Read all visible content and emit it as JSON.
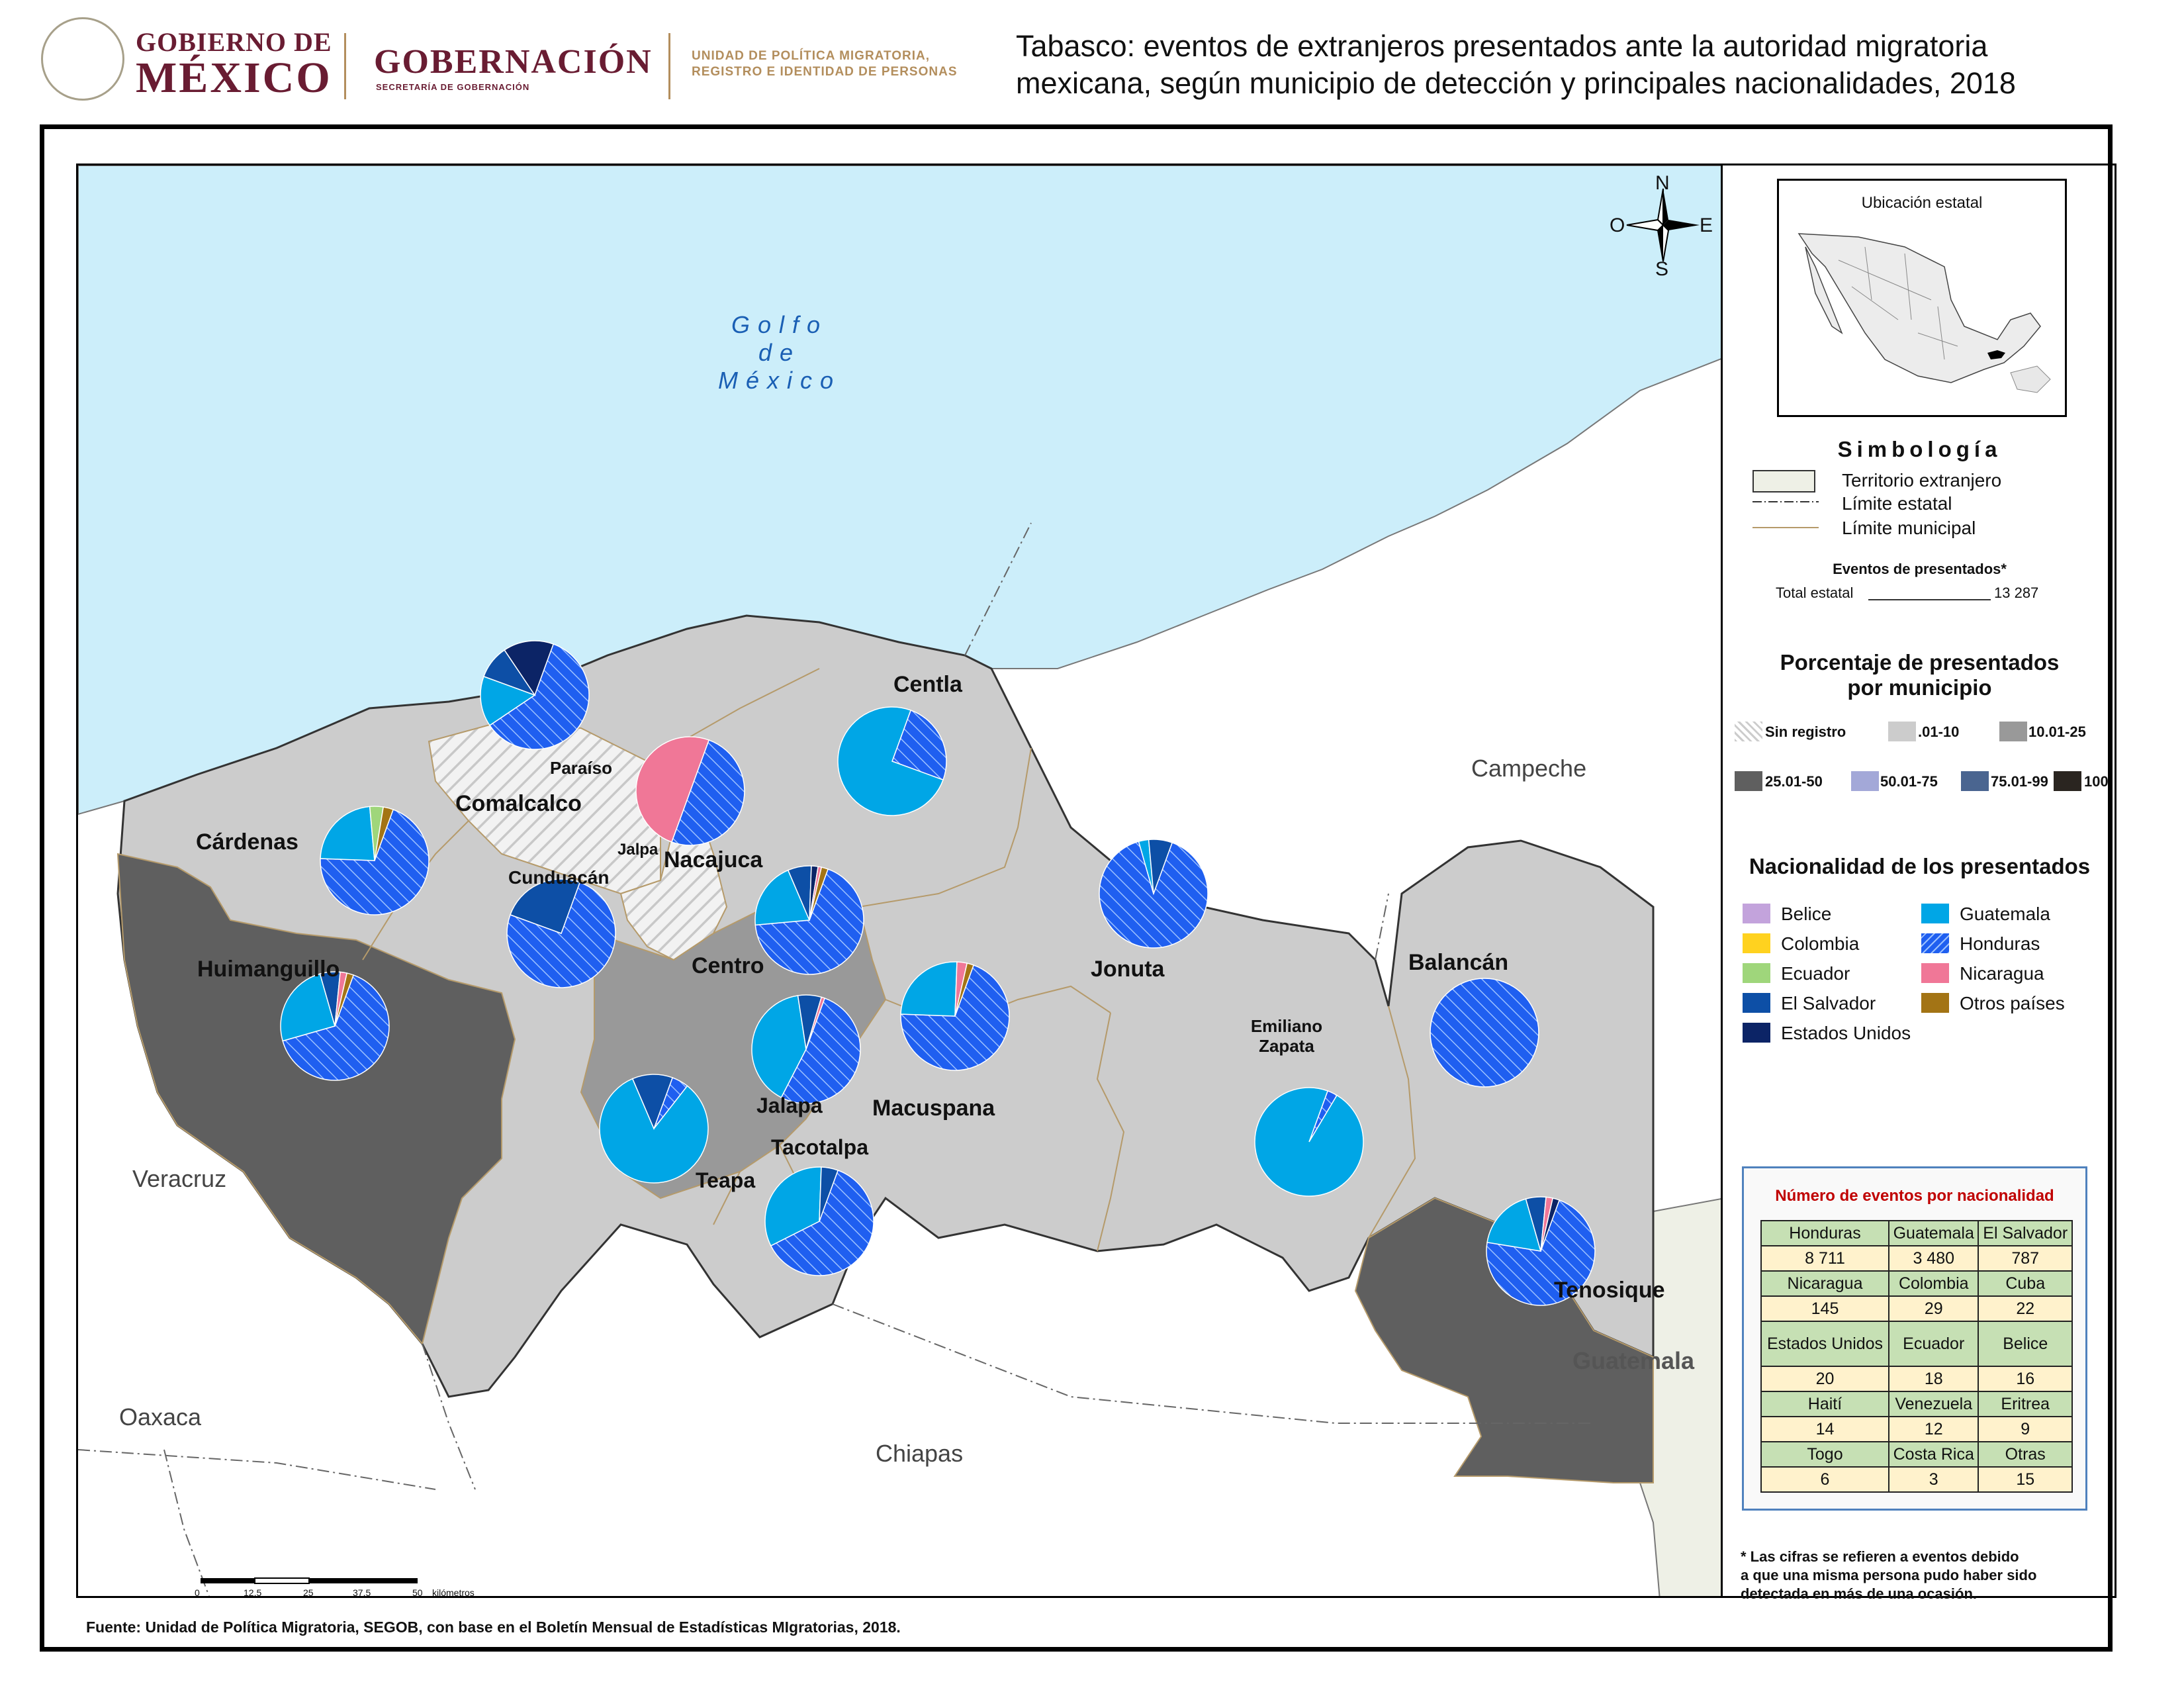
{
  "header": {
    "gov_line1": "GOBIERNO DE",
    "gov_line2": "MÉXICO",
    "ministry": "GOBERNACIÓN",
    "ministry_sub": "SECRETARÍA DE GOBERNACIÓN",
    "unit_line1": "UNIDAD DE POLÍTICA MIGRATORIA,",
    "unit_line2": "REGISTRO E IDENTIDAD DE PERSONAS",
    "title_line1": "Tabasco: eventos de extranjeros presentados ante la autoridad migratoria",
    "title_line2": "mexicana, según municipio de detección y principales nacionalidades, 2018"
  },
  "map": {
    "gulf": [
      "Golfo",
      "de",
      "México"
    ],
    "neighbors": {
      "campeche": "Campeche",
      "veracruz": "Veracruz",
      "oaxaca": "Oaxaca",
      "chiapas": "Chiapas",
      "guatemala": "Guatemala"
    },
    "compass": {
      "n": "N",
      "s": "S",
      "e": "E",
      "o": "O"
    },
    "municipalities": {
      "huimanguillo": "Huimanguillo",
      "cardenas": "Cárdenas",
      "comalcalco": "Comalcalco",
      "paraiso": "Paraíso",
      "jalpa": "Jalpa",
      "nacajuca": "Nacajuca",
      "cunduacan": "Cunduacán",
      "centla": "Centla",
      "centro": "Centro",
      "jonuta": "Jonuta",
      "macuspana": "Macuspana",
      "jalapa": "Jalapa",
      "teapa": "Teapa",
      "tacotalpa": "Tacotalpa",
      "emiliano_zapata": "Emiliano Zapata",
      "balancan": "Balancán",
      "tenosique": "Tenosique"
    },
    "scale": {
      "ticks": [
        "0",
        "12.5",
        "25",
        "37.5",
        "50"
      ],
      "unit": "kilómetros"
    },
    "pies": {
      "paraiso": {
        "Honduras": 60,
        "Guatemala": 15,
        "El Salvador": 10,
        "Estados Unidos": 15
      },
      "cardenas": {
        "Honduras": 70,
        "Guatemala": 23,
        "Ecuador": 4,
        "Otros países": 3
      },
      "centla": {
        "Honduras": 25,
        "Guatemala": 75
      },
      "nacajuca": {
        "Honduras": 50,
        "Nicaragua": 50
      },
      "cunduacan": {
        "Honduras": 75,
        "El Salvador": 25
      },
      "huimanguillo": {
        "Honduras": 65,
        "Guatemala": 25,
        "El Salvador": 6,
        "Nicaragua": 2,
        "Otros países": 2
      },
      "centro": {
        "Honduras": 68,
        "Guatemala": 20,
        "El Salvador": 7,
        "Estados Unidos": 2,
        "Nicaragua": 1,
        "Otros países": 2
      },
      "jonuta": {
        "Honduras": 90,
        "Guatemala": 3,
        "El Salvador": 7
      },
      "macuspana": {
        "Honduras": 70,
        "Guatemala": 25,
        "Nicaragua": 3,
        "Otros países": 2
      },
      "jalapa": {
        "Honduras": 52,
        "Guatemala": 40,
        "El Salvador": 7,
        "Nicaragua": 1
      },
      "teapa": {
        "Honduras": 5,
        "Guatemala": 83,
        "El Salvador": 12
      },
      "tacotalpa": {
        "Honduras": 62,
        "Guatemala": 33,
        "El Salvador": 5
      },
      "emiliano_zapata": {
        "Honduras": 3,
        "Guatemala": 97
      },
      "balancan": {
        "Honduras": 100
      },
      "tenosique": {
        "Honduras": 72,
        "Guatemala": 18,
        "El Salvador": 6,
        "Nicaragua": 2,
        "Estados Unidos": 2
      }
    }
  },
  "inset": {
    "title": "Ubicación estatal"
  },
  "legend": {
    "title": "Simbología",
    "items": [
      "Territorio extranjero",
      "Límite estatal",
      "Límite municipal"
    ],
    "events_title": "Eventos de presentados*",
    "events_total_label": "Total estatal",
    "events_total_value": "13 287",
    "pct_title_1": "Porcentaje de presentados",
    "pct_title_2": "por municipio",
    "pct_classes": [
      {
        "label": "Sin registro",
        "color": "#eeeeee"
      },
      {
        "label": ".01-10",
        "color": "#cccccc"
      },
      {
        "label": "10.01-25",
        "color": "#999999"
      },
      {
        "label": "25.01-50",
        "color": "#5f5f5f"
      },
      {
        "label": "50.01-75",
        "color": "#a3a8d8"
      },
      {
        "label": "75.01-99",
        "color": "#4a6590"
      },
      {
        "label": "100",
        "color": "#2a2520"
      }
    ],
    "nat_title": "Nacionalidad de los presentados",
    "nationalities": [
      {
        "label": "Belice",
        "color": "#c3a3dc"
      },
      {
        "label": "Colombia",
        "color": "#ffd21f"
      },
      {
        "label": "Ecuador",
        "color": "#9fd67b"
      },
      {
        "label": "El Salvador",
        "color": "#0d4fa6"
      },
      {
        "label": "Estados Unidos",
        "color": "#0c2466"
      },
      {
        "label": "Guatemala",
        "color": "#00a6e6"
      },
      {
        "label": "Honduras",
        "color": "#1f5ff0"
      },
      {
        "label": "Nicaragua",
        "color": "#f07797"
      },
      {
        "label": "Otros países",
        "color": "#a37415"
      }
    ]
  },
  "table": {
    "title": "Número de eventos por nacionalidad",
    "rows": [
      {
        "names": [
          "Honduras",
          "Guatemala",
          "El Salvador"
        ],
        "values": [
          "8 711",
          "3 480",
          "787"
        ]
      },
      {
        "names": [
          "Nicaragua",
          "Colombia",
          "Cuba"
        ],
        "values": [
          "145",
          "29",
          "22"
        ]
      },
      {
        "names": [
          "Estados Unidos",
          "Ecuador",
          "Belice"
        ],
        "values": [
          "20",
          "18",
          "16"
        ]
      },
      {
        "names": [
          "Haití",
          "Venezuela",
          "Eritrea"
        ],
        "values": [
          "14",
          "12",
          "9"
        ]
      },
      {
        "names": [
          "Togo",
          "Costa Rica",
          "Otras"
        ],
        "values": [
          "6",
          "3",
          "15"
        ]
      }
    ]
  },
  "footnote": {
    "l1": "* Las cifras se refieren a eventos debido",
    "l2": "a que una misma persona pudo haber sido",
    "l3": "detectada en más de una ocasión."
  },
  "source": "Fuente: Unidad de Política Migratoria, SEGOB, con base en el Boletín Mensual de Estadísticas MIgratorias, 2018."
}
